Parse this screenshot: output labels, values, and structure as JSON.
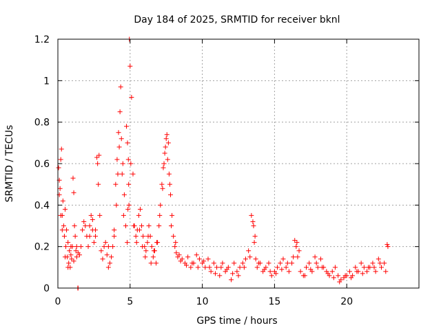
{
  "chart_data": {
    "type": "scatter",
    "title": "Day 184 of 2025, SRMTID for receiver bknl",
    "xlabel": "GPS time / hours",
    "ylabel": "SRMTID / TECUs",
    "xlim": [
      0,
      25
    ],
    "ylim": [
      0,
      1.2
    ],
    "xticks": [
      0,
      5,
      10,
      15,
      20
    ],
    "xtick_labels": [
      "0",
      "5",
      "10",
      "15",
      "20"
    ],
    "yticks": [
      0,
      0.2,
      0.4,
      0.6,
      0.8,
      1.0,
      1.2
    ],
    "ytick_labels": [
      "0",
      "0.2",
      "0.4",
      "0.6",
      "0.8",
      "1",
      "1.2"
    ],
    "grid": true,
    "marker": "+",
    "marker_color": "#ff0000",
    "frame_color": "#000000",
    "grid_color": "#a0a0a0",
    "series": [
      {
        "name": "SRMTID",
        "x": [
          0.05,
          0.1,
          0.15,
          0.2,
          0.25,
          0.3,
          0.35,
          0.4,
          0.45,
          0.5,
          0.55,
          0.6,
          0.65,
          0.7,
          0.75,
          0.8,
          0.85,
          0.9,
          0.95,
          1.0,
          1.05,
          1.1,
          1.15,
          1.2,
          1.25,
          1.3,
          1.4,
          1.5,
          1.6,
          1.7,
          1.8,
          1.9,
          2.0,
          2.1,
          2.2,
          2.3,
          2.4,
          2.5,
          2.6,
          2.7,
          2.75,
          2.8,
          2.9,
          3.0,
          3.1,
          3.2,
          3.3,
          3.4,
          3.5,
          3.6,
          3.7,
          3.8,
          3.9,
          4.0,
          4.1,
          4.2,
          4.3,
          4.35,
          4.4,
          4.5,
          4.6,
          4.7,
          4.8,
          4.85,
          4.9,
          4.95,
          5.0,
          5.1,
          5.2,
          5.3,
          5.4,
          5.5,
          5.6,
          5.7,
          5.8,
          5.9,
          6.0,
          6.1,
          6.2,
          6.3,
          6.4,
          6.5,
          6.6,
          6.7,
          6.8,
          6.9,
          7.0,
          7.1,
          7.2,
          7.3,
          7.4,
          7.5,
          7.6,
          7.7,
          7.8,
          7.9,
          8.0,
          8.1,
          8.2,
          8.3,
          8.4,
          8.6,
          8.8,
          9.0,
          9.2,
          9.4,
          9.6,
          9.8,
          10.0,
          10.2,
          10.4,
          10.6,
          10.8,
          11.0,
          11.2,
          11.4,
          11.6,
          11.8,
          12.0,
          12.2,
          12.4,
          12.6,
          12.8,
          13.0,
          13.2,
          13.4,
          13.5,
          13.6,
          13.7,
          13.8,
          14.0,
          14.2,
          14.4,
          14.6,
          14.8,
          15.0,
          15.2,
          15.4,
          15.6,
          15.8,
          16.0,
          16.2,
          16.4,
          16.5,
          16.6,
          16.8,
          17.0,
          17.2,
          17.4,
          17.6,
          17.8,
          18.0,
          18.2,
          18.4,
          18.6,
          18.8,
          19.0,
          19.2,
          19.4,
          19.6,
          19.8,
          20.0,
          20.2,
          20.4,
          20.6,
          20.8,
          21.0,
          21.2,
          21.4,
          21.6,
          21.8,
          22.0,
          22.2,
          22.4,
          22.6,
          22.8,
          1.38,
          1.4,
          0.1,
          0.2,
          0.3,
          0.5,
          0.7,
          0.9,
          1.1,
          1.3,
          2.2,
          2.4,
          2.6,
          2.85,
          3.5,
          3.9,
          4.05,
          4.15,
          4.25,
          4.45,
          4.55,
          4.75,
          4.82,
          4.88,
          4.92,
          5.05,
          5.25,
          5.45,
          5.65,
          5.85,
          6.05,
          6.25,
          6.45,
          6.65,
          6.85,
          7.05,
          7.25,
          7.35,
          7.45,
          7.55,
          7.65,
          7.75,
          7.85,
          8.15,
          8.5,
          8.9,
          9.3,
          9.7,
          10.1,
          10.5,
          10.9,
          11.3,
          11.7,
          12.1,
          12.5,
          12.9,
          13.3,
          13.55,
          13.65,
          13.9,
          14.3,
          14.7,
          15.1,
          15.5,
          15.9,
          16.3,
          16.55,
          16.7,
          17.1,
          17.5,
          17.9,
          18.3,
          18.7,
          19.1,
          19.5,
          19.9,
          20.3,
          20.7,
          21.1,
          21.5,
          21.9,
          22.3,
          22.7,
          22.85
        ],
        "y": [
          0.58,
          0.52,
          0.48,
          0.62,
          0.67,
          0.35,
          0.42,
          0.3,
          0.25,
          0.38,
          0.2,
          0.28,
          0.15,
          0.22,
          0.12,
          0.18,
          0.1,
          0.16,
          0.14,
          0.2,
          0.53,
          0.46,
          0.3,
          0.25,
          0.18,
          0.15,
          0.17,
          0.16,
          0.2,
          0.28,
          0.32,
          0.3,
          0.25,
          0.2,
          0.3,
          0.35,
          0.28,
          0.22,
          0.25,
          0.63,
          0.6,
          0.5,
          0.35,
          0.18,
          0.14,
          0.2,
          0.22,
          0.16,
          0.1,
          0.12,
          0.15,
          0.2,
          0.28,
          0.5,
          0.62,
          0.75,
          0.85,
          0.97,
          0.72,
          0.6,
          0.45,
          0.3,
          0.22,
          0.38,
          0.5,
          1.2,
          1.07,
          0.92,
          0.55,
          0.3,
          0.25,
          0.28,
          0.35,
          0.38,
          0.3,
          0.25,
          0.2,
          0.18,
          0.22,
          0.3,
          0.25,
          0.2,
          0.15,
          0.18,
          0.12,
          0.22,
          0.3,
          0.4,
          0.5,
          0.58,
          0.65,
          0.72,
          0.62,
          0.55,
          0.45,
          0.35,
          0.25,
          0.2,
          0.17,
          0.15,
          0.16,
          0.14,
          0.12,
          0.15,
          0.1,
          0.12,
          0.16,
          0.14,
          0.12,
          0.1,
          0.14,
          0.08,
          0.12,
          0.1,
          0.06,
          0.12,
          0.08,
          0.1,
          0.04,
          0.12,
          0.08,
          0.1,
          0.12,
          0.14,
          0.18,
          0.35,
          0.32,
          0.22,
          0.14,
          0.1,
          0.12,
          0.08,
          0.1,
          0.12,
          0.06,
          0.08,
          0.1,
          0.12,
          0.14,
          0.1,
          0.08,
          0.12,
          0.23,
          0.2,
          0.15,
          0.08,
          0.06,
          0.1,
          0.12,
          0.08,
          0.15,
          0.1,
          0.14,
          0.1,
          0.08,
          0.06,
          0.08,
          0.1,
          0.06,
          0.04,
          0.05,
          0.06,
          0.08,
          0.06,
          0.1,
          0.08,
          0.12,
          0.1,
          0.08,
          0.1,
          0.12,
          0.08,
          0.14,
          0.1,
          0.12,
          0.21,
          0.0,
          0.0,
          0.45,
          0.35,
          0.28,
          0.15,
          0.1,
          0.2,
          0.13,
          0.2,
          0.25,
          0.33,
          0.28,
          0.64,
          0.2,
          0.25,
          0.4,
          0.55,
          0.68,
          0.55,
          0.35,
          0.78,
          0.7,
          0.62,
          0.4,
          0.6,
          0.3,
          0.22,
          0.28,
          0.2,
          0.15,
          0.25,
          0.12,
          0.18,
          0.22,
          0.35,
          0.48,
          0.6,
          0.68,
          0.74,
          0.7,
          0.5,
          0.3,
          0.22,
          0.13,
          0.11,
          0.12,
          0.1,
          0.13,
          0.1,
          0.07,
          0.1,
          0.09,
          0.07,
          0.06,
          0.1,
          0.15,
          0.3,
          0.25,
          0.12,
          0.09,
          0.08,
          0.07,
          0.09,
          0.12,
          0.15,
          0.22,
          0.18,
          0.06,
          0.09,
          0.12,
          0.1,
          0.07,
          0.05,
          0.03,
          0.06,
          0.05,
          0.08,
          0.07,
          0.1,
          0.1,
          0.12,
          0.08,
          0.2
        ]
      }
    ]
  }
}
